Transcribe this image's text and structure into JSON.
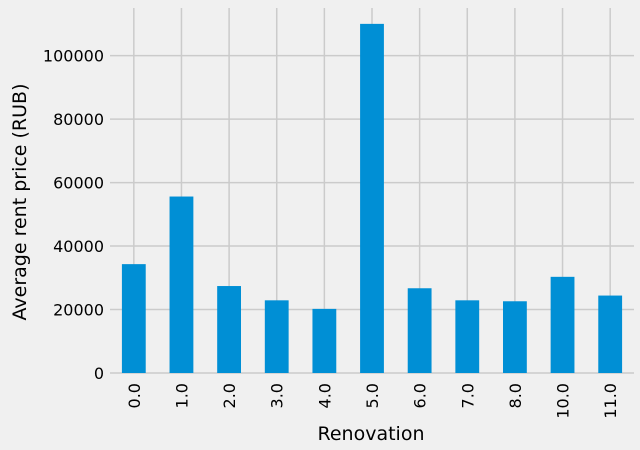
{
  "chart_data": {
    "type": "bar",
    "title": "",
    "xlabel": "Renovation",
    "ylabel": "Average rent price (RUB)",
    "categories": [
      "0.0",
      "1.0",
      "2.0",
      "3.0",
      "4.0",
      "5.0",
      "6.0",
      "7.0",
      "8.0",
      "10.0",
      "11.0"
    ],
    "values": [
      34300,
      55600,
      27400,
      22900,
      20200,
      110000,
      26700,
      22900,
      22600,
      30300,
      24400
    ],
    "ylim": [
      0,
      115000
    ],
    "yticks": [
      0,
      20000,
      40000,
      60000,
      80000,
      100000
    ],
    "ytick_labels": [
      "0",
      "20000",
      "40000",
      "60000",
      "80000",
      "100000"
    ],
    "grid": true,
    "legend": "none",
    "colors": {
      "bar": "#008fd5",
      "background": "#f0f0f0",
      "grid": "#cbcbcb"
    }
  }
}
